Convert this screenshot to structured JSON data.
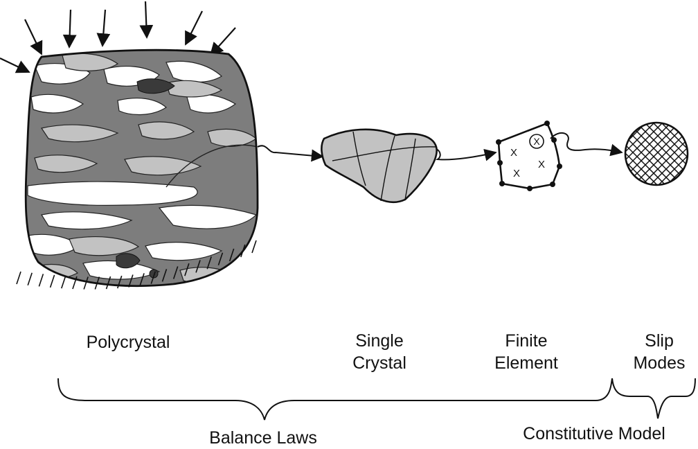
{
  "labels": {
    "polycrystal": "Polycrystal",
    "single_crystal_line1": "Single",
    "single_crystal_line2": "Crystal",
    "finite_element_line1": "Finite",
    "finite_element_line2": "Element",
    "slip_modes_line1": "Slip",
    "slip_modes_line2": "Modes",
    "balance_laws": "Balance Laws",
    "constitutive_model": "Constitutive Model"
  },
  "finite_element_marks": [
    "X",
    "X",
    "X",
    "X"
  ],
  "colors": {
    "ink": "#111111",
    "grain_dark": "#7d7d7d",
    "grain_mid": "#c2c2c2",
    "grain_light": "#ffffff",
    "grain_darkest": "#3a3a3a"
  }
}
